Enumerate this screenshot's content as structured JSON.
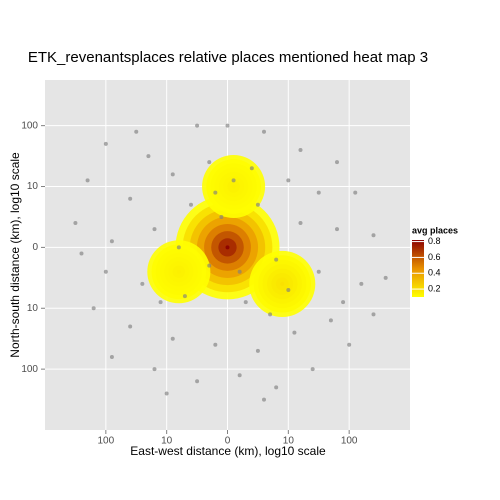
{
  "chart_data": {
    "type": "scatter",
    "title": "ETK_revenantsplaces relative places mentioned heat map 3",
    "x_label": "East-west distance (km), log10 scale",
    "y_label": "North-south distance (km), log10 scale",
    "xlim": [
      -3,
      3
    ],
    "ylim": [
      -3,
      2.75
    ],
    "xticks": [
      {
        "value": -2,
        "label": "100"
      },
      {
        "value": -1,
        "label": "10"
      },
      0,
      {
        "value": 1,
        "label": "10"
      },
      {
        "value": 2,
        "label": "100"
      }
    ],
    "yticks": [
      {
        "value": -2,
        "label": "100"
      },
      {
        "value": -1,
        "label": "10"
      },
      0,
      {
        "value": 1,
        "label": "10"
      },
      {
        "value": 2,
        "label": "100"
      }
    ],
    "grid": true,
    "series": [
      {
        "color": "#7f7f7f",
        "x": [
          -2.0,
          -1.3,
          -0.5,
          0.0,
          0.6,
          1.2,
          1.8,
          -2.3,
          -1.6,
          -0.9,
          -0.3,
          0.4,
          1.0,
          1.5,
          2.1,
          -2.5,
          -1.9,
          -1.2,
          -0.6,
          0.5,
          1.2,
          1.8,
          2.4,
          -2.0,
          -1.4,
          -0.7,
          0.3,
          0.7,
          1.5,
          2.2,
          2.6,
          -2.2,
          -1.6,
          -0.9,
          -0.2,
          0.5,
          1.1,
          1.7,
          2.0,
          -1.9,
          -1.2,
          -0.5,
          0.2,
          0.8,
          1.4,
          -1.0,
          0.6,
          -0.1,
          0.2,
          -0.3,
          0.8,
          -0.8,
          0.1,
          -0.2,
          1.0,
          -1.1,
          1.9,
          -2.4,
          2.4,
          -1.5
        ],
        "y": [
          1.7,
          1.5,
          2.0,
          2.0,
          1.9,
          1.6,
          1.4,
          1.1,
          0.8,
          1.2,
          1.4,
          1.3,
          1.1,
          0.9,
          0.9,
          0.4,
          0.1,
          0.3,
          0.7,
          0.7,
          0.4,
          0.3,
          0.2,
          -0.4,
          -0.6,
          -0.8,
          -0.9,
          -1.1,
          -0.4,
          -0.6,
          -0.5,
          -1.0,
          -1.3,
          -1.5,
          -1.6,
          -1.7,
          -1.4,
          -1.2,
          -1.6,
          -1.8,
          -2.0,
          -2.2,
          -2.1,
          -2.3,
          -2.0,
          -2.4,
          -2.5,
          0.5,
          -0.4,
          -0.3,
          -0.2,
          0.0,
          1.1,
          0.9,
          -0.7,
          -0.9,
          -0.9,
          -0.1,
          -1.1,
          1.9
        ]
      }
    ],
    "heat": {
      "x": [
        0,
        -0.8,
        0.1,
        0.9
      ],
      "y": [
        0,
        -0.4,
        1.0,
        -0.6
      ],
      "values": [
        0.82,
        0.15,
        0.15,
        0.2
      ]
    },
    "legend": {
      "title": "avg places",
      "lim": [
        0.1,
        0.82
      ],
      "ticks": [
        0.2,
        0.4,
        0.6,
        0.8
      ],
      "colors": [
        "#ffff00",
        "#e89000",
        "#8b0000"
      ]
    }
  }
}
